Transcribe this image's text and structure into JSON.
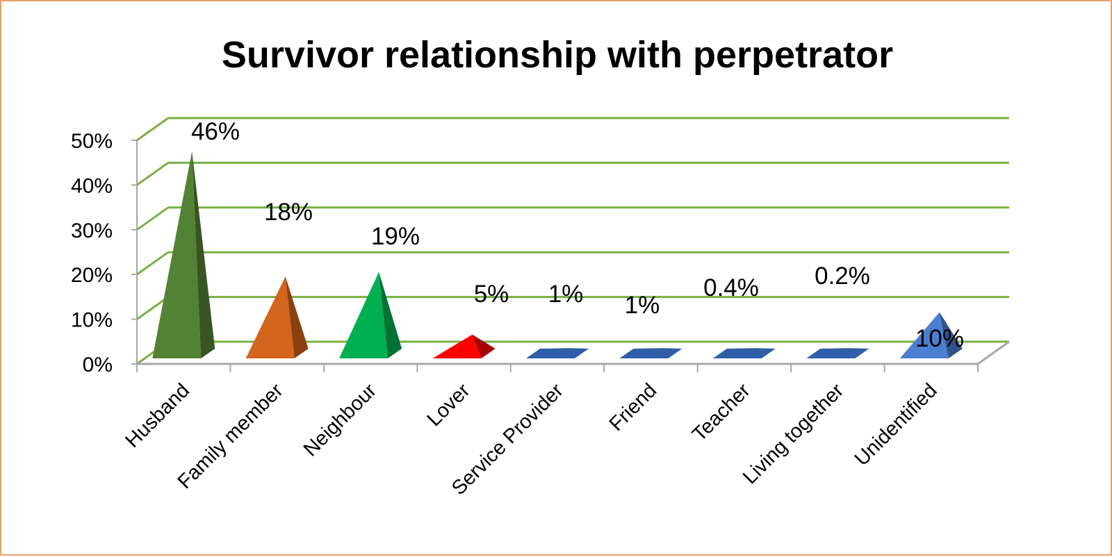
{
  "chart_data": {
    "type": "bar",
    "shape": "pyramid",
    "view": "3d",
    "title": "Survivor relationship with perpetrator",
    "xlabel": "",
    "ylabel": "",
    "categories": [
      "Husband",
      "Family member",
      "Neighbour",
      "Lover",
      "Service Provider",
      "Friend",
      "Teacher",
      "Living together",
      "Unidentified"
    ],
    "values": [
      46,
      18,
      19,
      5,
      1,
      1,
      0.4,
      0.2,
      10
    ],
    "data_labels": [
      "46%",
      "18%",
      "19%",
      "5%",
      "1%",
      "1%",
      "0.4%",
      "0.2%",
      "10%"
    ],
    "y_ticks": [
      "0%",
      "10%",
      "20%",
      "30%",
      "40%",
      "50%"
    ],
    "ylim": [
      0,
      50
    ],
    "grid": true,
    "legend": "none",
    "colors": {
      "bars": [
        "#548235",
        "#d5641c",
        "#00b050",
        "#ff0000",
        "#2e5fa8",
        "#2e5fa8",
        "#2e5fa8",
        "#2e5fa8",
        "#4a7fd2"
      ],
      "gridlines": "#77b140",
      "axis": "#a6a6a6",
      "frame_border": "#e8a266"
    }
  }
}
